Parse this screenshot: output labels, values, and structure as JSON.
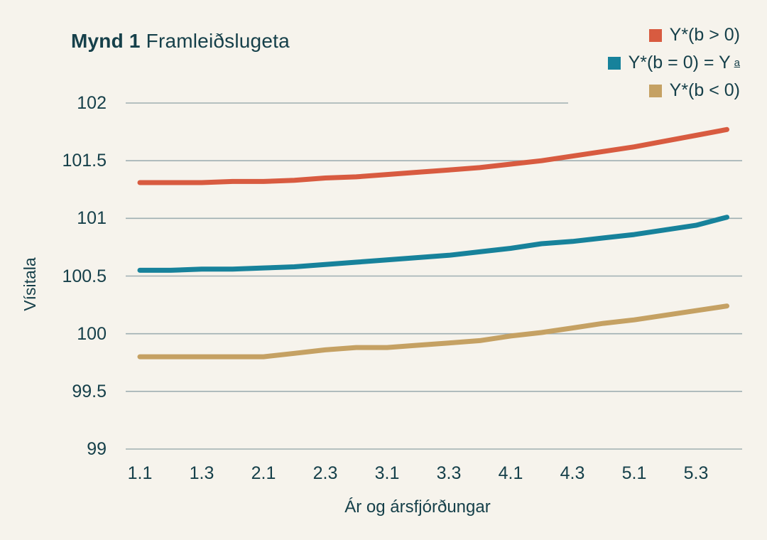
{
  "title": {
    "prefix": "Mynd 1",
    "text": "Framleiðslugeta"
  },
  "legend": [
    {
      "label": "Y*(b > 0)",
      "superscript": "",
      "color": "#d85b40"
    },
    {
      "label": "Y*(b = 0) = Y",
      "superscript": "a",
      "color": "#17829b"
    },
    {
      "label": "Y*(b < 0)",
      "superscript": "",
      "color": "#c5a163"
    }
  ],
  "axes": {
    "y_title": "Vísitala",
    "x_title": "Ár og ársfjórðungar"
  },
  "colors": {
    "background": "#f6f3ec",
    "text": "#16404a",
    "grid": "#9fafb2",
    "series_red": "#d85b40",
    "series_teal": "#17829b",
    "series_tan": "#c5a163"
  },
  "chart_data": {
    "type": "line",
    "title": "Mynd 1 Framleiðslugeta",
    "xlabel": "Ár og ársfjórðungar",
    "ylabel": "Vísitala",
    "x": [
      "1.1",
      "1.2",
      "1.3",
      "1.4",
      "2.1",
      "2.2",
      "2.3",
      "2.4",
      "3.1",
      "3.2",
      "3.3",
      "3.4",
      "4.1",
      "4.2",
      "4.3",
      "4.4",
      "5.1",
      "5.2",
      "5.3",
      "5.4"
    ],
    "x_tick_labels_shown": [
      "1.1",
      "1.3",
      "2.1",
      "2.3",
      "3.1",
      "3.3",
      "4.1",
      "4.3",
      "5.1",
      "5.3"
    ],
    "ylim": [
      99,
      102
    ],
    "y_ticks": [
      99,
      99.5,
      100,
      100.5,
      101,
      101.5,
      102
    ],
    "grid": true,
    "legend_position": "top-right",
    "series": [
      {
        "name": "Y*(b > 0)",
        "color": "#d85b40",
        "values": [
          101.31,
          101.31,
          101.31,
          101.32,
          101.32,
          101.33,
          101.35,
          101.36,
          101.38,
          101.4,
          101.42,
          101.44,
          101.47,
          101.5,
          101.54,
          101.58,
          101.62,
          101.67,
          101.72,
          101.77
        ]
      },
      {
        "name": "Y*(b = 0) = Y a",
        "color": "#17829b",
        "values": [
          100.55,
          100.55,
          100.56,
          100.56,
          100.57,
          100.58,
          100.6,
          100.62,
          100.64,
          100.66,
          100.68,
          100.71,
          100.74,
          100.78,
          100.8,
          100.83,
          100.86,
          100.9,
          100.94,
          101.01
        ]
      },
      {
        "name": "Y*(b < 0)",
        "color": "#c5a163",
        "values": [
          99.8,
          99.8,
          99.8,
          99.8,
          99.8,
          99.83,
          99.86,
          99.88,
          99.88,
          99.9,
          99.92,
          99.94,
          99.98,
          100.01,
          100.05,
          100.09,
          100.12,
          100.16,
          100.2,
          100.24
        ]
      }
    ]
  }
}
